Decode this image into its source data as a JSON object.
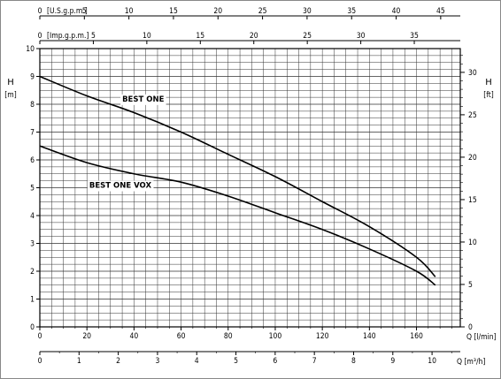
{
  "chart_data": {
    "type": "line",
    "left_axis": {
      "label": "H",
      "unit": "[m]",
      "range": [
        0,
        10
      ],
      "ticks": [
        0,
        1,
        2,
        3,
        4,
        5,
        6,
        7,
        8,
        9,
        10
      ]
    },
    "right_axis": {
      "label": "H",
      "unit": "[ft]",
      "range": [
        0,
        32.8
      ],
      "ticks": [
        0,
        5,
        10,
        15,
        20,
        25,
        30
      ]
    },
    "bottom_axis_lmin": {
      "label": "Q [l/min]",
      "range": [
        0,
        178.6
      ],
      "ticks": [
        0,
        20,
        40,
        60,
        80,
        100,
        120,
        140,
        160
      ]
    },
    "bottom_axis_m3h": {
      "label": "Q [m³/h]",
      "range": [
        0,
        10.72
      ],
      "ticks": [
        0,
        1,
        2,
        3,
        4,
        5,
        6,
        7,
        8,
        9,
        10
      ]
    },
    "top_axis_usgpm": {
      "label": "[U.S.g.p.m.]",
      "range": [
        0,
        47.2
      ],
      "ticks": [
        0,
        5,
        10,
        15,
        20,
        25,
        30,
        35,
        40,
        45
      ]
    },
    "top_axis_impgpm": {
      "label": "[Imp.g.p.m.]",
      "range": [
        0,
        39.3
      ],
      "ticks": [
        0,
        5,
        10,
        15,
        20,
        25,
        30,
        35
      ]
    },
    "grid": true,
    "series": [
      {
        "name": "BEST ONE",
        "points": [
          [
            0,
            9.0
          ],
          [
            20,
            8.3
          ],
          [
            40,
            7.7
          ],
          [
            60,
            7.0
          ],
          [
            80,
            6.2
          ],
          [
            100,
            5.4
          ],
          [
            120,
            4.5
          ],
          [
            140,
            3.6
          ],
          [
            160,
            2.5
          ],
          [
            168,
            1.8
          ]
        ]
      },
      {
        "name": "BEST ONE VOX",
        "points": [
          [
            0,
            6.5
          ],
          [
            20,
            5.9
          ],
          [
            40,
            5.5
          ],
          [
            60,
            5.2
          ],
          [
            80,
            4.7
          ],
          [
            100,
            4.1
          ],
          [
            120,
            3.5
          ],
          [
            140,
            2.8
          ],
          [
            160,
            2.0
          ],
          [
            168,
            1.5
          ]
        ]
      }
    ]
  }
}
